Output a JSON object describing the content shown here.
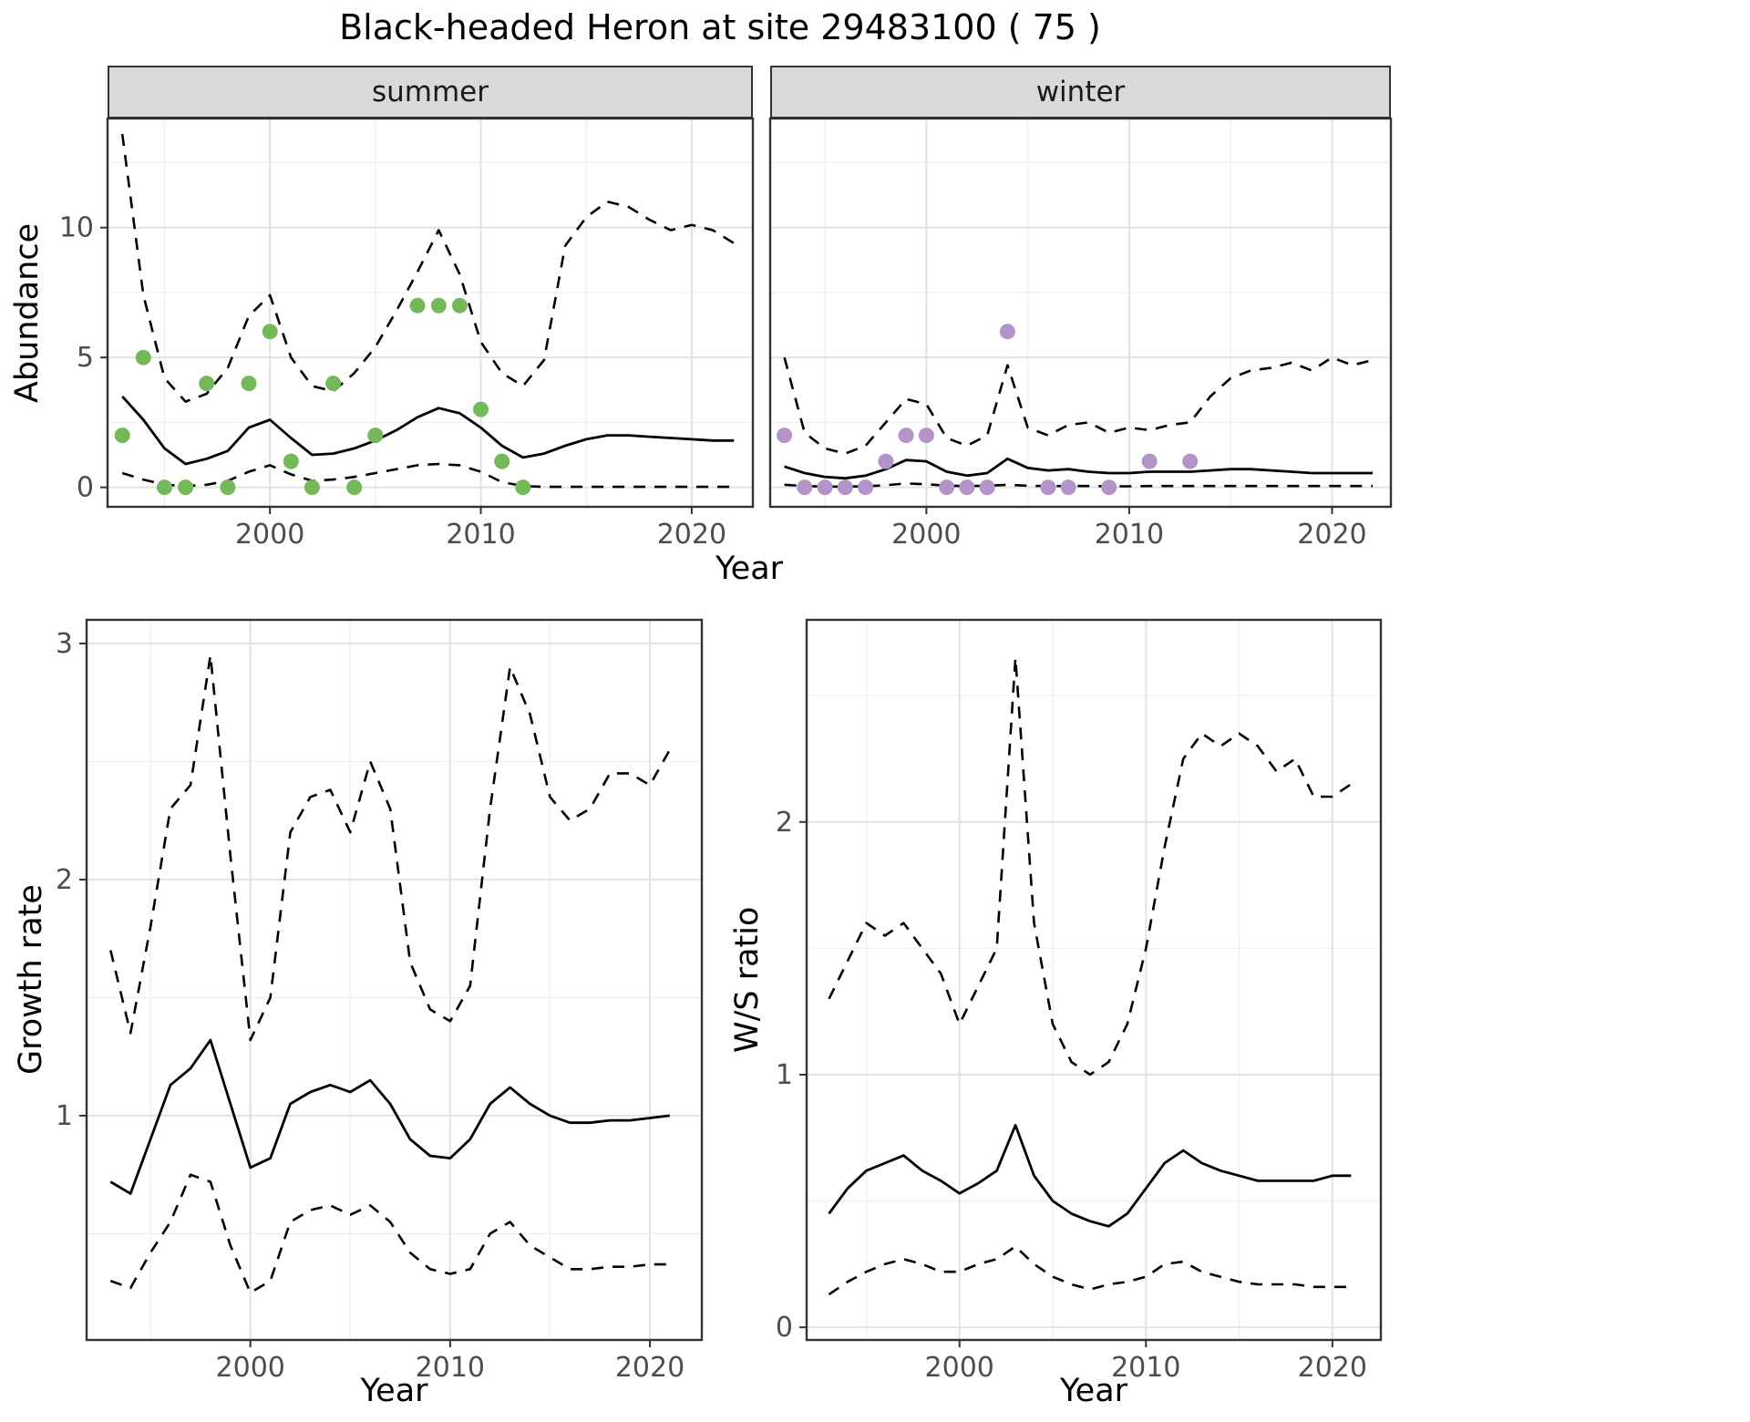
{
  "title": "Black-headed Heron at site 29483100 ( 75 )",
  "colors": {
    "line": "#000000",
    "summer_points": "#75b85a",
    "winter_points": "#b493c8",
    "grid_major": "#e2e2e2",
    "grid_minor": "#f0f0f0",
    "panel_border": "#333333",
    "strip_bg": "#d9d9d9",
    "tick_text": "#4d4d4d"
  },
  "chart_data": [
    {
      "id": "abundance-summer",
      "type": "line",
      "facet": "summer",
      "title": "",
      "xlabel": "Year",
      "ylabel": "Abundance",
      "x_range": [
        1992.3,
        2022.9
      ],
      "y_range": [
        -0.75,
        14.2
      ],
      "x_ticks": [
        2000,
        2010,
        2020
      ],
      "y_ticks": [
        0,
        5,
        10
      ],
      "series": [
        {
          "name": "estimate-median",
          "dash": false,
          "x": [
            1993,
            1994,
            1995,
            1996,
            1997,
            1998,
            1999,
            2000,
            2001,
            2002,
            2003,
            2004,
            2005,
            2006,
            2007,
            2008,
            2009,
            2010,
            2011,
            2012,
            2013,
            2014,
            2015,
            2016,
            2017,
            2018,
            2019,
            2020,
            2021,
            2022
          ],
          "y": [
            3.5,
            2.6,
            1.5,
            0.9,
            1.1,
            1.4,
            2.3,
            2.6,
            1.9,
            1.25,
            1.3,
            1.5,
            1.8,
            2.2,
            2.7,
            3.05,
            2.85,
            2.3,
            1.6,
            1.15,
            1.3,
            1.6,
            1.85,
            2.0,
            2.0,
            1.95,
            1.9,
            1.85,
            1.8,
            1.8
          ]
        },
        {
          "name": "upper-ci",
          "dash": true,
          "x": [
            1993,
            1994,
            1995,
            1996,
            1997,
            1998,
            1999,
            2000,
            2001,
            2002,
            2003,
            2004,
            2005,
            2006,
            2007,
            2008,
            2009,
            2010,
            2011,
            2012,
            2013,
            2014,
            2015,
            2016,
            2017,
            2018,
            2019,
            2020,
            2021,
            2022
          ],
          "y": [
            13.6,
            7.4,
            4.2,
            3.3,
            3.6,
            4.6,
            6.6,
            7.4,
            5.0,
            3.9,
            3.7,
            4.4,
            5.4,
            6.8,
            8.3,
            9.9,
            8.2,
            5.6,
            4.4,
            3.9,
            4.9,
            9.3,
            10.4,
            11.0,
            10.8,
            10.3,
            9.9,
            10.1,
            9.9,
            9.4
          ]
        },
        {
          "name": "lower-ci",
          "dash": true,
          "x": [
            1993,
            1994,
            1995,
            1996,
            1997,
            1998,
            1999,
            2000,
            2001,
            2002,
            2003,
            2004,
            2005,
            2006,
            2007,
            2008,
            2009,
            2010,
            2011,
            2012,
            2013,
            2014,
            2015,
            2016,
            2017,
            2018,
            2019,
            2020,
            2021,
            2022
          ],
          "y": [
            0.55,
            0.3,
            0.1,
            0.05,
            0.1,
            0.25,
            0.6,
            0.85,
            0.5,
            0.25,
            0.3,
            0.4,
            0.55,
            0.7,
            0.85,
            0.9,
            0.85,
            0.6,
            0.2,
            0.05,
            0.02,
            0.02,
            0.02,
            0.02,
            0.02,
            0.02,
            0.02,
            0.02,
            0.02,
            0.02
          ]
        }
      ],
      "points": {
        "name": "observed-counts-summer",
        "color": "#75b85a",
        "x": [
          1993,
          1994,
          1995,
          1996,
          1997,
          1998,
          1999,
          2000,
          2001,
          2002,
          2003,
          2004,
          2005,
          2007,
          2008,
          2009,
          2010,
          2011,
          2012
        ],
        "y": [
          2,
          5,
          0,
          0,
          4,
          0,
          4,
          6,
          1,
          0,
          4,
          0,
          2,
          7,
          7,
          7,
          3,
          1,
          0
        ]
      }
    },
    {
      "id": "abundance-winter",
      "type": "line",
      "facet": "winter",
      "title": "",
      "xlabel": "Year",
      "ylabel": "Abundance",
      "x_range": [
        1992.3,
        2022.9
      ],
      "y_range": [
        -0.75,
        14.2
      ],
      "x_ticks": [
        2000,
        2010,
        2020
      ],
      "y_ticks": [
        0,
        5,
        10
      ],
      "series": [
        {
          "name": "estimate-median",
          "dash": false,
          "x": [
            1993,
            1994,
            1995,
            1996,
            1997,
            1998,
            1999,
            2000,
            2001,
            2002,
            2003,
            2004,
            2005,
            2006,
            2007,
            2008,
            2009,
            2010,
            2011,
            2012,
            2013,
            2014,
            2015,
            2016,
            2017,
            2018,
            2019,
            2020,
            2021,
            2022
          ],
          "y": [
            0.8,
            0.55,
            0.4,
            0.35,
            0.45,
            0.7,
            1.05,
            1.0,
            0.6,
            0.45,
            0.55,
            1.1,
            0.75,
            0.65,
            0.7,
            0.6,
            0.55,
            0.55,
            0.6,
            0.6,
            0.6,
            0.65,
            0.7,
            0.7,
            0.65,
            0.6,
            0.55,
            0.55,
            0.55,
            0.55
          ]
        },
        {
          "name": "upper-ci",
          "dash": true,
          "x": [
            1993,
            1994,
            1995,
            1996,
            1997,
            1998,
            1999,
            2000,
            2001,
            2002,
            2003,
            2004,
            2005,
            2006,
            2007,
            2008,
            2009,
            2010,
            2011,
            2012,
            2013,
            2014,
            2015,
            2016,
            2017,
            2018,
            2019,
            2020,
            2021,
            2022
          ],
          "y": [
            5.0,
            2.1,
            1.5,
            1.3,
            1.6,
            2.5,
            3.4,
            3.2,
            1.9,
            1.6,
            2.0,
            4.7,
            2.3,
            2.0,
            2.4,
            2.5,
            2.1,
            2.3,
            2.2,
            2.4,
            2.5,
            3.5,
            4.2,
            4.5,
            4.6,
            4.8,
            4.5,
            5.0,
            4.7,
            4.9
          ]
        },
        {
          "name": "lower-ci",
          "dash": true,
          "x": [
            1993,
            1994,
            1995,
            1996,
            1997,
            1998,
            1999,
            2000,
            2001,
            2002,
            2003,
            2004,
            2005,
            2006,
            2007,
            2008,
            2009,
            2010,
            2011,
            2012,
            2013,
            2014,
            2015,
            2016,
            2017,
            2018,
            2019,
            2020,
            2021,
            2022
          ],
          "y": [
            0.1,
            0.05,
            0.03,
            0.03,
            0.04,
            0.08,
            0.15,
            0.12,
            0.06,
            0.05,
            0.06,
            0.1,
            0.06,
            0.05,
            0.05,
            0.05,
            0.04,
            0.04,
            0.05,
            0.05,
            0.05,
            0.05,
            0.05,
            0.05,
            0.05,
            0.05,
            0.05,
            0.05,
            0.05,
            0.05
          ]
        }
      ],
      "points": {
        "name": "observed-counts-winter",
        "color": "#b493c8",
        "x": [
          1993,
          1994,
          1995,
          1996,
          1997,
          1998,
          1999,
          2000,
          2001,
          2002,
          2003,
          2004,
          2006,
          2007,
          2009,
          2011,
          2013
        ],
        "y": [
          2,
          0,
          0,
          0,
          0,
          1,
          2,
          2,
          0,
          0,
          0,
          6,
          0,
          0,
          0,
          1,
          1
        ]
      }
    },
    {
      "id": "growth-rate",
      "type": "line",
      "facet": "",
      "title": "",
      "xlabel": "Year",
      "ylabel": "Growth rate",
      "x_range": [
        1991.8,
        2022.6
      ],
      "y_range": [
        0.05,
        3.1
      ],
      "x_ticks": [
        2000,
        2010,
        2020
      ],
      "y_ticks": [
        1,
        2,
        3
      ],
      "series": [
        {
          "name": "estimate-median",
          "dash": false,
          "x": [
            1993,
            1994,
            1995,
            1996,
            1997,
            1998,
            1999,
            2000,
            2001,
            2002,
            2003,
            2004,
            2005,
            2006,
            2007,
            2008,
            2009,
            2010,
            2011,
            2012,
            2013,
            2014,
            2015,
            2016,
            2017,
            2018,
            2019,
            2020,
            2021
          ],
          "y": [
            0.72,
            0.67,
            0.9,
            1.13,
            1.2,
            1.32,
            1.05,
            0.78,
            0.82,
            1.05,
            1.1,
            1.13,
            1.1,
            1.15,
            1.05,
            0.9,
            0.83,
            0.82,
            0.9,
            1.05,
            1.12,
            1.05,
            1.0,
            0.97,
            0.97,
            0.98,
            0.98,
            0.99,
            1.0
          ]
        },
        {
          "name": "upper-ci",
          "dash": true,
          "x": [
            1993,
            1994,
            1995,
            1996,
            1997,
            1998,
            1999,
            2000,
            2001,
            2002,
            2003,
            2004,
            2005,
            2006,
            2007,
            2008,
            2009,
            2010,
            2011,
            2012,
            2013,
            2014,
            2015,
            2016,
            2017,
            2018,
            2019,
            2020,
            2021
          ],
          "y": [
            1.7,
            1.35,
            1.8,
            2.3,
            2.4,
            2.95,
            2.1,
            1.32,
            1.5,
            2.2,
            2.35,
            2.38,
            2.2,
            2.5,
            2.3,
            1.65,
            1.45,
            1.4,
            1.55,
            2.3,
            2.9,
            2.7,
            2.35,
            2.25,
            2.3,
            2.45,
            2.45,
            2.4,
            2.55
          ]
        },
        {
          "name": "lower-ci",
          "dash": true,
          "x": [
            1993,
            1994,
            1995,
            1996,
            1997,
            1998,
            1999,
            2000,
            2001,
            2002,
            2003,
            2004,
            2005,
            2006,
            2007,
            2008,
            2009,
            2010,
            2011,
            2012,
            2013,
            2014,
            2015,
            2016,
            2017,
            2018,
            2019,
            2020,
            2021
          ],
          "y": [
            0.3,
            0.27,
            0.42,
            0.55,
            0.75,
            0.72,
            0.45,
            0.25,
            0.3,
            0.55,
            0.6,
            0.62,
            0.58,
            0.62,
            0.55,
            0.42,
            0.35,
            0.33,
            0.35,
            0.5,
            0.55,
            0.45,
            0.4,
            0.35,
            0.35,
            0.36,
            0.36,
            0.37,
            0.37
          ]
        }
      ],
      "points": null
    },
    {
      "id": "ws-ratio",
      "type": "line",
      "facet": "",
      "title": "",
      "xlabel": "Year",
      "ylabel": "W/S ratio",
      "x_range": [
        1991.8,
        2022.6
      ],
      "y_range": [
        -0.05,
        2.8
      ],
      "x_ticks": [
        2000,
        2010,
        2020
      ],
      "y_ticks": [
        0,
        1,
        2
      ],
      "series": [
        {
          "name": "estimate-median",
          "dash": false,
          "x": [
            1993,
            1994,
            1995,
            1996,
            1997,
            1998,
            1999,
            2000,
            2001,
            2002,
            2003,
            2004,
            2005,
            2006,
            2007,
            2008,
            2009,
            2010,
            2011,
            2012,
            2013,
            2014,
            2015,
            2016,
            2017,
            2018,
            2019,
            2020,
            2021
          ],
          "y": [
            0.45,
            0.55,
            0.62,
            0.65,
            0.68,
            0.62,
            0.58,
            0.53,
            0.57,
            0.62,
            0.8,
            0.6,
            0.5,
            0.45,
            0.42,
            0.4,
            0.45,
            0.55,
            0.65,
            0.7,
            0.65,
            0.62,
            0.6,
            0.58,
            0.58,
            0.58,
            0.58,
            0.6,
            0.6
          ]
        },
        {
          "name": "upper-ci",
          "dash": true,
          "x": [
            1993,
            1994,
            1995,
            1996,
            1997,
            1998,
            1999,
            2000,
            2001,
            2002,
            2003,
            2004,
            2005,
            2006,
            2007,
            2008,
            2009,
            2010,
            2011,
            2012,
            2013,
            2014,
            2015,
            2016,
            2017,
            2018,
            2019,
            2020,
            2021
          ],
          "y": [
            1.3,
            1.45,
            1.6,
            1.55,
            1.6,
            1.5,
            1.4,
            1.2,
            1.35,
            1.5,
            2.65,
            1.6,
            1.2,
            1.05,
            1.0,
            1.05,
            1.2,
            1.5,
            1.9,
            2.25,
            2.35,
            2.3,
            2.35,
            2.3,
            2.2,
            2.25,
            2.1,
            2.1,
            2.15
          ]
        },
        {
          "name": "lower-ci",
          "dash": true,
          "x": [
            1993,
            1994,
            1995,
            1996,
            1997,
            1998,
            1999,
            2000,
            2001,
            2002,
            2003,
            2004,
            2005,
            2006,
            2007,
            2008,
            2009,
            2010,
            2011,
            2012,
            2013,
            2014,
            2015,
            2016,
            2017,
            2018,
            2019,
            2020,
            2021
          ],
          "y": [
            0.13,
            0.18,
            0.22,
            0.25,
            0.27,
            0.25,
            0.22,
            0.22,
            0.25,
            0.27,
            0.32,
            0.25,
            0.2,
            0.17,
            0.15,
            0.17,
            0.18,
            0.2,
            0.25,
            0.26,
            0.22,
            0.2,
            0.18,
            0.17,
            0.17,
            0.17,
            0.16,
            0.16,
            0.16
          ]
        }
      ],
      "points": null
    }
  ]
}
